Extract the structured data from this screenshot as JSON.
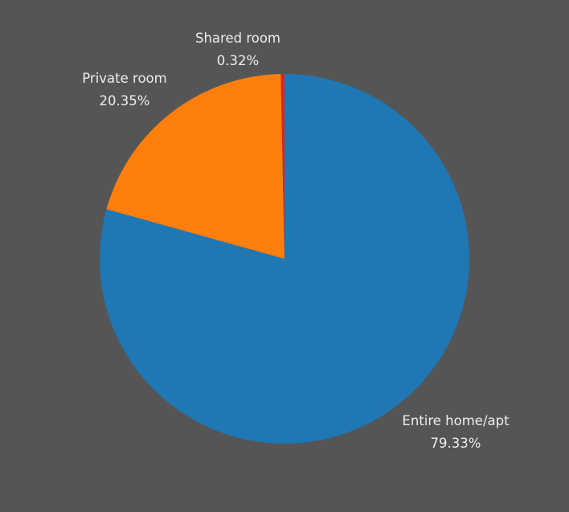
{
  "chart_data": {
    "type": "pie",
    "title": "",
    "slices": [
      {
        "label": "Entire home/apt",
        "value": 79.33,
        "value_label": "79.33%",
        "color": "#1f77b4"
      },
      {
        "label": "Private room",
        "value": 20.35,
        "value_label": "20.35%",
        "color": "#ff7f0e"
      },
      {
        "label": "Shared room",
        "value": 0.32,
        "value_label": "0.32%",
        "color": "#d62728"
      }
    ],
    "start_angle": "12 o'clock",
    "direction": "clockwise",
    "legend": "none",
    "background_color": "#555555",
    "label_color": "#ededed"
  }
}
